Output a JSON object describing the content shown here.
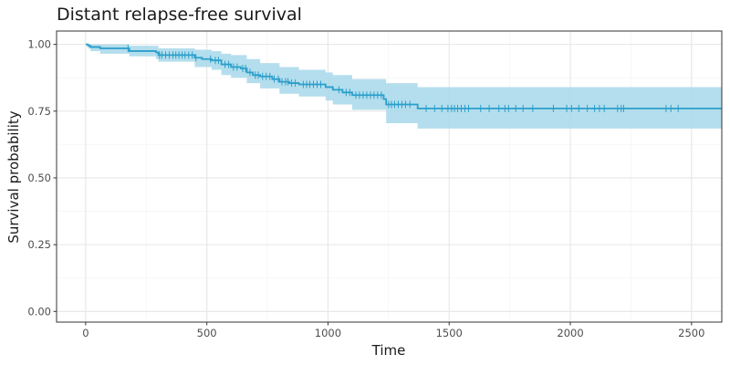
{
  "chart_data": {
    "type": "line",
    "subtype": "kaplan-meier",
    "title": "Distant relapse-free survival",
    "xlabel": "Time",
    "ylabel": "Survival probability",
    "xlim": [
      -120,
      2625
    ],
    "ylim": [
      -0.04,
      1.05
    ],
    "xticks": [
      0,
      500,
      1000,
      1500,
      2000,
      2500
    ],
    "yticks": [
      0.0,
      0.25,
      0.5,
      0.75,
      1.0
    ],
    "ytick_labels": [
      "0.00",
      "0.25",
      "0.50",
      "0.75",
      "1.00"
    ],
    "grid": true,
    "legend": "none",
    "colors": {
      "line": "#2b9fcb",
      "band": "#a7d8ea",
      "censor": "#2b9fcb"
    },
    "series": [
      {
        "steps": [
          {
            "x": 0,
            "y": 1.0
          },
          {
            "x": 10,
            "y": 0.995
          },
          {
            "x": 20,
            "y": 0.99
          },
          {
            "x": 60,
            "y": 0.985
          },
          {
            "x": 180,
            "y": 0.975
          },
          {
            "x": 290,
            "y": 0.97
          },
          {
            "x": 300,
            "y": 0.96
          },
          {
            "x": 340,
            "y": 0.96
          },
          {
            "x": 450,
            "y": 0.95
          },
          {
            "x": 480,
            "y": 0.945
          },
          {
            "x": 520,
            "y": 0.94
          },
          {
            "x": 560,
            "y": 0.925
          },
          {
            "x": 600,
            "y": 0.915
          },
          {
            "x": 640,
            "y": 0.91
          },
          {
            "x": 665,
            "y": 0.895
          },
          {
            "x": 690,
            "y": 0.885
          },
          {
            "x": 720,
            "y": 0.88
          },
          {
            "x": 770,
            "y": 0.87
          },
          {
            "x": 800,
            "y": 0.86
          },
          {
            "x": 840,
            "y": 0.855
          },
          {
            "x": 880,
            "y": 0.85
          },
          {
            "x": 990,
            "y": 0.84
          },
          {
            "x": 1020,
            "y": 0.83
          },
          {
            "x": 1060,
            "y": 0.82
          },
          {
            "x": 1100,
            "y": 0.81
          },
          {
            "x": 1230,
            "y": 0.795
          },
          {
            "x": 1240,
            "y": 0.775
          },
          {
            "x": 1370,
            "y": 0.76
          }
        ],
        "x_end": 2625,
        "ci_lower": [
          {
            "x": 0,
            "y": 1.0
          },
          {
            "x": 10,
            "y": 0.985
          },
          {
            "x": 20,
            "y": 0.975
          },
          {
            "x": 60,
            "y": 0.965
          },
          {
            "x": 180,
            "y": 0.955
          },
          {
            "x": 290,
            "y": 0.945
          },
          {
            "x": 300,
            "y": 0.935
          },
          {
            "x": 450,
            "y": 0.915
          },
          {
            "x": 520,
            "y": 0.905
          },
          {
            "x": 560,
            "y": 0.885
          },
          {
            "x": 600,
            "y": 0.875
          },
          {
            "x": 665,
            "y": 0.855
          },
          {
            "x": 720,
            "y": 0.835
          },
          {
            "x": 800,
            "y": 0.815
          },
          {
            "x": 880,
            "y": 0.805
          },
          {
            "x": 990,
            "y": 0.79
          },
          {
            "x": 1020,
            "y": 0.775
          },
          {
            "x": 1100,
            "y": 0.755
          },
          {
            "x": 1240,
            "y": 0.705
          },
          {
            "x": 1370,
            "y": 0.685
          }
        ],
        "ci_upper": [
          {
            "x": 0,
            "y": 1.0
          },
          {
            "x": 60,
            "y": 1.0
          },
          {
            "x": 180,
            "y": 0.995
          },
          {
            "x": 300,
            "y": 0.985
          },
          {
            "x": 450,
            "y": 0.98
          },
          {
            "x": 520,
            "y": 0.975
          },
          {
            "x": 560,
            "y": 0.965
          },
          {
            "x": 600,
            "y": 0.96
          },
          {
            "x": 665,
            "y": 0.945
          },
          {
            "x": 720,
            "y": 0.93
          },
          {
            "x": 800,
            "y": 0.915
          },
          {
            "x": 880,
            "y": 0.905
          },
          {
            "x": 990,
            "y": 0.895
          },
          {
            "x": 1020,
            "y": 0.885
          },
          {
            "x": 1100,
            "y": 0.87
          },
          {
            "x": 1240,
            "y": 0.855
          },
          {
            "x": 1370,
            "y": 0.84
          }
        ],
        "censored_x": [
          175,
          305,
          315,
          330,
          345,
          360,
          372,
          385,
          398,
          410,
          425,
          440,
          455,
          515,
          535,
          548,
          575,
          590,
          610,
          625,
          648,
          660,
          678,
          700,
          712,
          730,
          745,
          760,
          778,
          795,
          810,
          825,
          835,
          850,
          865,
          898,
          912,
          925,
          940,
          955,
          970,
          1045,
          1075,
          1090,
          1115,
          1130,
          1145,
          1160,
          1175,
          1190,
          1205,
          1220,
          1250,
          1262,
          1275,
          1290,
          1305,
          1320,
          1338,
          1405,
          1440,
          1470,
          1495,
          1510,
          1522,
          1535,
          1550,
          1565,
          1580,
          1630,
          1665,
          1705,
          1730,
          1745,
          1775,
          1805,
          1845,
          1930,
          1985,
          2005,
          2035,
          2070,
          2100,
          2120,
          2140,
          2195,
          2210,
          2220,
          2395,
          2415,
          2445
        ]
      }
    ]
  }
}
